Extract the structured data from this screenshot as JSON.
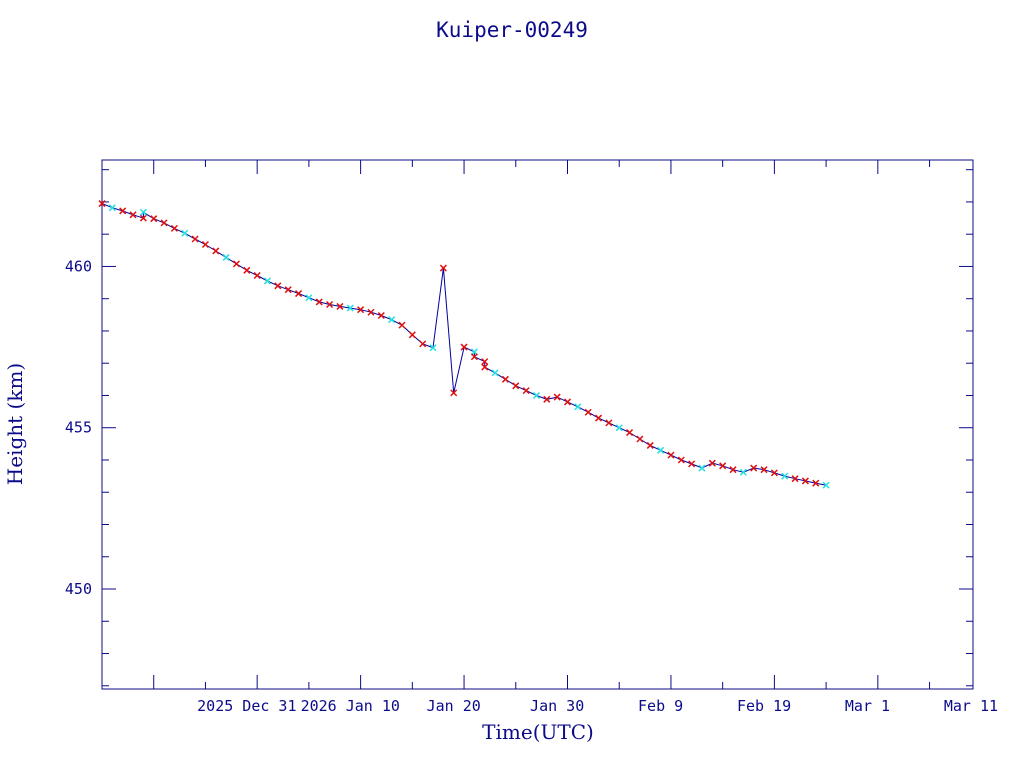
{
  "chart_data": {
    "type": "line",
    "title": "Kuiper-00249",
    "xlabel": "Time(UTC)",
    "ylabel": "Height (km)",
    "ylim": [
      446.9,
      463.3
    ],
    "yticks": [
      450,
      455,
      460
    ],
    "xlim_days": [
      -15.0,
      69.2
    ],
    "xlim": [
      "2025-12-17",
      "2026-03-14"
    ],
    "xtick_labels": [
      "2025 Dec 31",
      "2026 Jan 10",
      "Jan 20",
      "Jan 30",
      "Feb  9",
      "Feb 19",
      "Mar  1",
      "Mar 11"
    ],
    "xtick_dates": [
      "2025-12-31",
      "2026-01-10",
      "2026-01-20",
      "2026-01-30",
      "2026-02-09",
      "2026-02-19",
      "2026-03-01",
      "2026-03-11"
    ],
    "grid": false,
    "legend": "none",
    "colors": {
      "axis": "#0b0b8a",
      "line": "#0000a0",
      "marker_main": "#e01010",
      "marker_alt": "#20e0e0"
    },
    "series": [
      {
        "x": [
          "2025-12-17",
          "2025-12-18",
          "2025-12-19",
          "2025-12-20",
          "2025-12-21",
          "2025-12-21",
          "2025-12-22",
          "2025-12-23",
          "2025-12-24",
          "2025-12-25",
          "2025-12-26",
          "2025-12-27",
          "2025-12-28",
          "2025-12-29",
          "2025-12-30",
          "2025-12-31",
          "2026-01-01",
          "2026-01-02",
          "2026-01-03",
          "2026-01-04",
          "2026-01-05",
          "2026-01-06",
          "2026-01-07",
          "2026-01-08",
          "2026-01-09",
          "2026-01-10",
          "2026-01-11",
          "2026-01-12",
          "2026-01-13",
          "2026-01-14",
          "2026-01-15",
          "2026-01-16",
          "2026-01-17",
          "2026-01-18",
          "2026-01-19",
          "2026-01-20",
          "2026-01-21",
          "2026-01-22",
          "2026-01-22",
          "2026-01-23",
          "2026-01-23",
          "2026-01-24",
          "2026-01-25",
          "2026-01-26",
          "2026-01-27",
          "2026-01-28",
          "2026-01-29",
          "2026-01-30",
          "2026-01-31",
          "2026-02-01",
          "2026-02-02",
          "2026-02-03",
          "2026-02-04",
          "2026-02-05",
          "2026-02-06",
          "2026-02-07",
          "2026-02-08",
          "2026-02-09",
          "2026-02-10",
          "2026-02-11",
          "2026-02-12",
          "2026-02-13",
          "2026-02-14",
          "2026-02-15",
          "2026-02-16",
          "2026-02-17",
          "2026-02-18",
          "2026-02-19",
          "2026-02-20",
          "2026-02-21",
          "2026-02-22",
          "2026-02-23",
          "2026-02-24",
          "2026-02-25"
        ],
        "y": [
          461.95,
          461.82,
          461.72,
          461.6,
          461.5,
          461.68,
          461.48,
          461.35,
          461.18,
          461.03,
          460.85,
          460.68,
          460.48,
          460.28,
          460.08,
          459.88,
          459.72,
          459.55,
          459.4,
          459.28,
          459.16,
          459.03,
          458.9,
          458.82,
          458.76,
          458.71,
          458.66,
          458.58,
          458.48,
          458.35,
          458.18,
          457.88,
          457.6,
          457.48,
          459.95,
          456.08,
          457.5,
          457.35,
          457.2,
          457.05,
          456.88,
          456.7,
          456.5,
          456.3,
          456.15,
          456.0,
          455.88,
          455.95,
          455.8,
          455.65,
          455.48,
          455.3,
          455.15,
          455.0,
          454.85,
          454.65,
          454.45,
          454.3,
          454.15,
          454.0,
          453.88,
          453.75,
          453.9,
          453.82,
          453.7,
          453.62,
          453.75,
          453.7,
          453.6,
          453.5,
          453.42,
          453.35,
          453.28,
          453.22
        ]
      }
    ]
  }
}
